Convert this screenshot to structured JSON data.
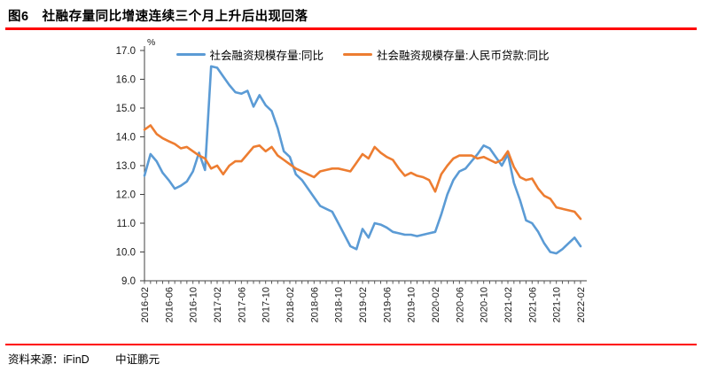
{
  "header": {
    "title": "图6　社融存量同比增速连续三个月上升后出现回落"
  },
  "footer": {
    "source": "资料来源：iFinD",
    "brand": "中证鹏元"
  },
  "colors": {
    "accent_rule": "#ff0000",
    "axis": "#404040",
    "series1": "#5B9BD5",
    "series2": "#ED7D31"
  },
  "chart_data": {
    "type": "line",
    "unit": "%",
    "grid": false,
    "legend_position": "top",
    "ylim": [
      9.0,
      17.0
    ],
    "ytick_step": 1.0,
    "ytick_labels": [
      "17.0",
      "16.0",
      "15.0",
      "14.0",
      "13.0",
      "12.0",
      "11.0",
      "10.0",
      "9.0"
    ],
    "xtick_every": 4,
    "x": [
      "2016-02",
      "2016-03",
      "2016-04",
      "2016-05",
      "2016-06",
      "2016-07",
      "2016-08",
      "2016-09",
      "2016-10",
      "2016-11",
      "2016-12",
      "2017-01",
      "2017-02",
      "2017-03",
      "2017-04",
      "2017-05",
      "2017-06",
      "2017-07",
      "2017-08",
      "2017-09",
      "2017-10",
      "2017-11",
      "2017-12",
      "2018-01",
      "2018-02",
      "2018-03",
      "2018-04",
      "2018-05",
      "2018-06",
      "2018-07",
      "2018-08",
      "2018-09",
      "2018-10",
      "2018-11",
      "2018-12",
      "2019-01",
      "2019-02",
      "2019-03",
      "2019-04",
      "2019-05",
      "2019-06",
      "2019-07",
      "2019-08",
      "2019-09",
      "2019-10",
      "2019-11",
      "2019-12",
      "2020-01",
      "2020-02",
      "2020-03",
      "2020-04",
      "2020-05",
      "2020-06",
      "2020-07",
      "2020-08",
      "2020-09",
      "2020-10",
      "2020-11",
      "2020-12",
      "2021-01",
      "2021-02",
      "2021-03",
      "2021-04",
      "2021-05",
      "2021-06",
      "2021-07",
      "2021-08",
      "2021-09",
      "2021-10",
      "2021-11",
      "2021-12",
      "2022-01",
      "2022-02"
    ],
    "series": [
      {
        "name": "社会融资规模存量:同比",
        "color": "#5B9BD5",
        "values": [
          12.65,
          13.4,
          13.15,
          12.75,
          12.5,
          12.2,
          12.3,
          12.45,
          12.8,
          13.45,
          12.85,
          16.45,
          16.4,
          16.1,
          15.8,
          15.55,
          15.5,
          15.6,
          15.05,
          15.45,
          15.1,
          14.9,
          14.3,
          13.5,
          13.3,
          12.7,
          12.5,
          12.2,
          11.9,
          11.6,
          11.5,
          11.4,
          11.0,
          10.6,
          10.2,
          10.1,
          10.8,
          10.5,
          11.0,
          10.95,
          10.85,
          10.7,
          10.65,
          10.6,
          10.6,
          10.55,
          10.6,
          10.65,
          10.7,
          11.3,
          12.0,
          12.5,
          12.8,
          12.9,
          13.15,
          13.4,
          13.7,
          13.6,
          13.3,
          13.0,
          13.4,
          12.4,
          11.8,
          11.1,
          11.0,
          10.7,
          10.3,
          10.0,
          9.95,
          10.1,
          10.3,
          10.5,
          10.2
        ]
      },
      {
        "name": "社会融资规模存量:人民币贷款:同比",
        "color": "#ED7D31",
        "values": [
          14.25,
          14.4,
          14.1,
          13.95,
          13.85,
          13.75,
          13.6,
          13.65,
          13.5,
          13.35,
          13.25,
          12.9,
          13.0,
          12.7,
          13.0,
          13.15,
          13.15,
          13.4,
          13.65,
          13.7,
          13.5,
          13.65,
          13.35,
          13.2,
          13.05,
          12.9,
          12.8,
          12.7,
          12.6,
          12.8,
          12.85,
          12.9,
          12.9,
          12.85,
          12.8,
          13.1,
          13.4,
          13.25,
          13.65,
          13.45,
          13.3,
          13.2,
          12.9,
          12.65,
          12.75,
          12.65,
          12.6,
          12.5,
          12.1,
          12.7,
          13.0,
          13.25,
          13.35,
          13.35,
          13.35,
          13.25,
          13.3,
          13.2,
          13.1,
          13.2,
          13.5,
          12.95,
          12.6,
          12.5,
          12.55,
          12.2,
          11.95,
          11.85,
          11.55,
          11.5,
          11.45,
          11.4,
          11.15
        ]
      }
    ]
  }
}
